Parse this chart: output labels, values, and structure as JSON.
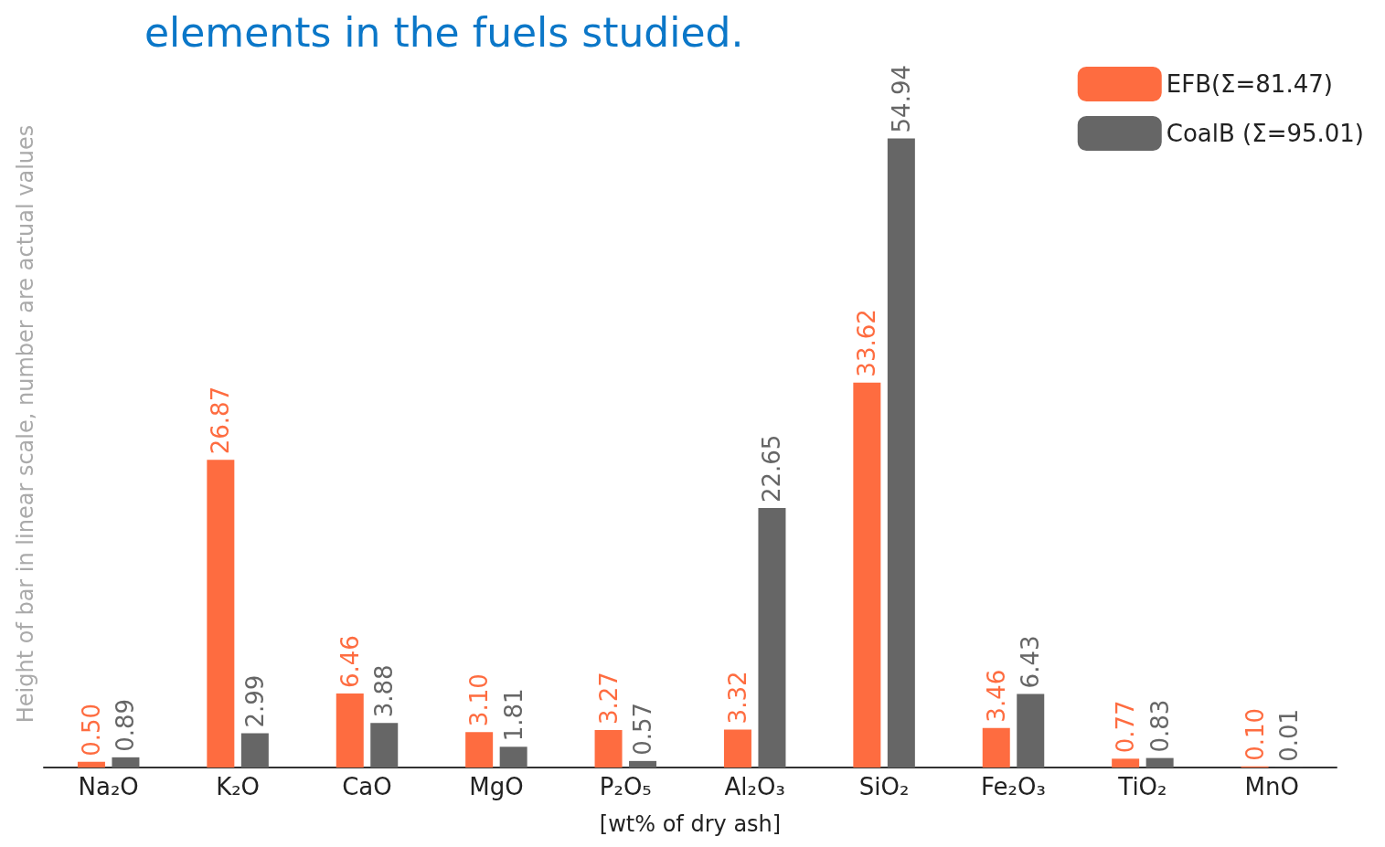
{
  "chart_data": {
    "type": "bar",
    "title": "elements in the fuels studied.",
    "xlabel": "[wt% of dry ash]",
    "ylabel": "Height of bar in linear scale, number are actual values",
    "categories": [
      "Na₂O",
      "K₂O",
      "CaO",
      "MgO",
      "P₂O₅",
      "Al₂O₃",
      "SiO₂",
      "Fe₂O₃",
      "TiO₂",
      "MnO"
    ],
    "series": [
      {
        "name": "EFB(Σ=81.47)",
        "color": "#fe6c40",
        "values": [
          0.5,
          26.87,
          6.46,
          3.1,
          3.27,
          3.32,
          33.62,
          3.46,
          0.77,
          0.1
        ],
        "value_labels": [
          "0.50",
          "26.87",
          "6.46",
          "3.10",
          "3.27",
          "3.32",
          "33.62",
          "3.46",
          "0.77",
          "0.10"
        ]
      },
      {
        "name": "CoalB (Σ=95.01)",
        "color": "#666666",
        "values": [
          0.89,
          2.99,
          3.88,
          1.81,
          0.57,
          22.65,
          54.94,
          6.43,
          0.83,
          0.01
        ],
        "value_labels": [
          "0.89",
          "2.99",
          "3.88",
          "1.81",
          "0.57",
          "22.65",
          "54.94",
          "6.43",
          "0.83",
          "0.01"
        ]
      }
    ],
    "legend": "top right",
    "grid": false
  }
}
